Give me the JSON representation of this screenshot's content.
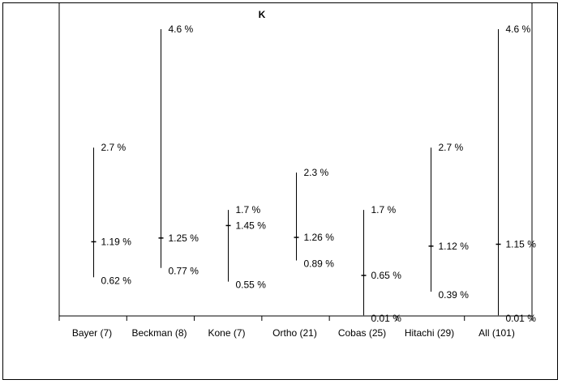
{
  "chart_data": {
    "type": "range",
    "title": "K",
    "xlabel": "",
    "ylabel": "",
    "ylim": [
      0,
      5
    ],
    "grid": false,
    "categories": [
      "Bayer (7)",
      "Beckman (8)",
      "Kone (7)",
      "Ortho (21)",
      "Cobas (25)",
      "Hitachi (29)",
      "All (101)"
    ],
    "series": [
      {
        "high": 2.7,
        "mid": 1.19,
        "low": 0.62,
        "high_label": "2.7 %",
        "mid_label": "1.19 %",
        "low_label": "0.62 %"
      },
      {
        "high": 4.6,
        "mid": 1.25,
        "low": 0.77,
        "high_label": "4.6 %",
        "mid_label": "1.25 %",
        "low_label": "0.77 %"
      },
      {
        "high": 1.7,
        "mid": 1.45,
        "low": 0.55,
        "high_label": "1.7 %",
        "mid_label": "1.45 %",
        "low_label": "0.55 %"
      },
      {
        "high": 2.3,
        "mid": 1.26,
        "low": 0.89,
        "high_label": "2.3 %",
        "mid_label": "1.26 %",
        "low_label": "0.89 %"
      },
      {
        "high": 1.7,
        "mid": 0.65,
        "low": 0.01,
        "high_label": "1.7 %",
        "mid_label": "0.65 %",
        "low_label": "0.01 %"
      },
      {
        "high": 2.7,
        "mid": 1.12,
        "low": 0.39,
        "high_label": "2.7 %",
        "mid_label": "1.12 %",
        "low_label": "0.39 %"
      },
      {
        "high": 4.6,
        "mid": 1.15,
        "low": 0.01,
        "high_label": "4.6 %",
        "mid_label": "1.15 %",
        "low_label": "0.01 %"
      }
    ]
  }
}
